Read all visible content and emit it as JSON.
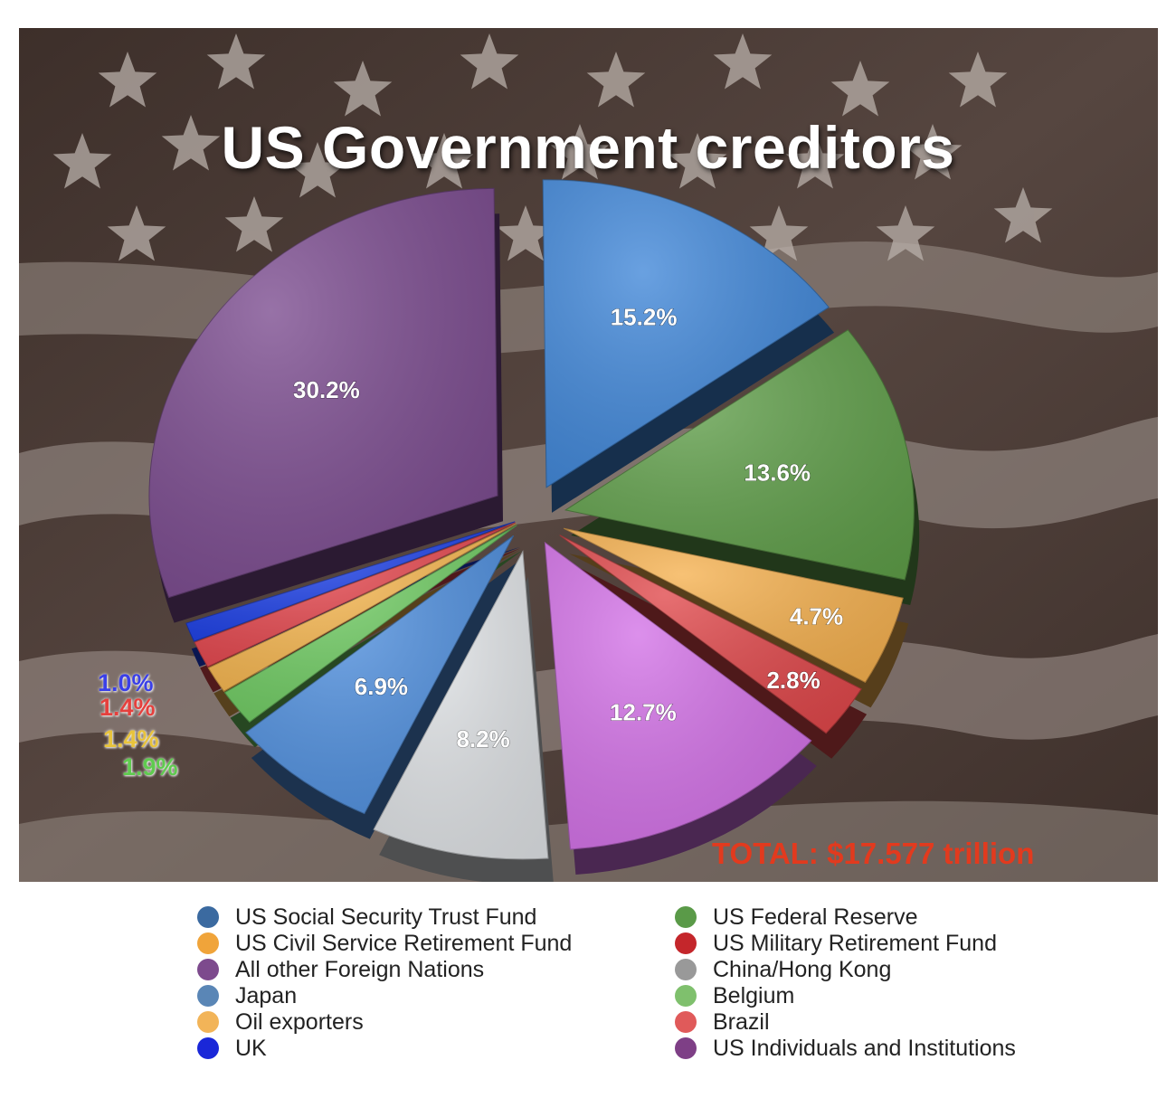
{
  "title": "US Government creditors",
  "total": "TOTAL: $17.577 trillion",
  "colors": {
    "panel_bg": "#4a3b34",
    "title": "#ffffff",
    "total": "#e23a1e"
  },
  "chart_data": {
    "type": "pie",
    "style": "exploded 3D pie",
    "title": "US Government creditors",
    "total": "$17.577 trillion",
    "slices": [
      {
        "name": "US Social Security Trust Fund",
        "value": 15.2,
        "label": "15.2%",
        "color": "#3f86d8"
      },
      {
        "name": "US Federal Reserve",
        "value": 13.6,
        "label": "13.6%",
        "color": "#5f9e49"
      },
      {
        "name": "US Civil Service Retirement Fund",
        "value": 4.7,
        "label": "4.7%",
        "color": "#f5b04e"
      },
      {
        "name": "US Military Retirement Fund",
        "value": 2.8,
        "label": "2.8%",
        "color": "#e0474a"
      },
      {
        "name": "US Individuals and Institutions",
        "value": 12.7,
        "label": "12.7%",
        "color": "#d270e6"
      },
      {
        "name": "China/Hong Kong",
        "value": 8.2,
        "label": "8.2%",
        "color": "#dfe2e5"
      },
      {
        "name": "Japan",
        "value": 6.9,
        "label": "6.9%",
        "color": "#4f8fde"
      },
      {
        "name": "Belgium",
        "value": 1.9,
        "label": "1.9%",
        "label_color": "#5fcb4f",
        "color": "#6fcb62"
      },
      {
        "name": "Oil exporters",
        "value": 1.4,
        "label": "1.4%",
        "label_color": "#e8c33c",
        "color": "#f6b64f"
      },
      {
        "name": "Brazil",
        "value": 1.4,
        "label": "1.4%",
        "label_color": "#e5403d",
        "color": "#e4464d"
      },
      {
        "name": "UK",
        "value": 1.0,
        "label": "1.0%",
        "label_color": "#3a3fe8",
        "color": "#1c3fe6"
      },
      {
        "name": "All other Foreign Nations",
        "value": 30.2,
        "label": "30.2%",
        "color": "#7a4a8e"
      }
    ]
  },
  "legend": {
    "left": [
      {
        "label": "US Social Security Trust Fund",
        "color": "#3b6aa0"
      },
      {
        "label": "US Civil Service Retirement Fund",
        "color": "#f0a43a"
      },
      {
        "label": "All other Foreign Nations",
        "color": "#7d4a8d"
      },
      {
        "label": "Japan",
        "color": "#5a86b6"
      },
      {
        "label": "Oil exporters",
        "color": "#f2b458"
      },
      {
        "label": "UK",
        "color": "#1a27d8"
      }
    ],
    "right": [
      {
        "label": "US Federal Reserve",
        "color": "#5a9a48"
      },
      {
        "label": "US Military Retirement Fund",
        "color": "#c4262b"
      },
      {
        "label": "China/Hong Kong",
        "color": "#999999"
      },
      {
        "label": "Belgium",
        "color": "#7fc06d"
      },
      {
        "label": "Brazil",
        "color": "#e05a5a"
      },
      {
        "label": "US Individuals and Institutions",
        "color": "#7e3f86"
      }
    ]
  }
}
